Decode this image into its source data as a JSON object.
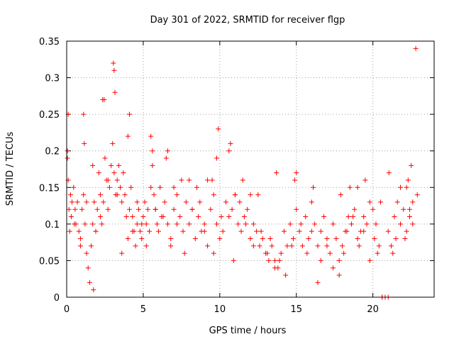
{
  "chart_data": {
    "type": "scatter",
    "title": "Day 301 of 2022, SRMTID for receiver flgp",
    "xlabel": "GPS time / hours",
    "ylabel": "SRMTID / TECUs",
    "xlim": [
      0,
      24
    ],
    "ylim": [
      0,
      0.35
    ],
    "x_ticks": [
      0,
      5,
      10,
      15,
      20
    ],
    "x_tick_labels": [
      "0",
      "5",
      "10",
      "15",
      "20"
    ],
    "y_ticks": [
      0,
      0.05,
      0.1,
      0.15,
      0.2,
      0.25,
      0.3,
      0.35
    ],
    "y_tick_labels": [
      "0",
      "0.05",
      "0.1",
      "0.15",
      "0.2",
      "0.25",
      "0.3",
      "0.35"
    ],
    "grid": true,
    "marker": "plus",
    "marker_color": "#ff0000",
    "series": [
      {
        "name": "SRMTID",
        "x": [
          0.05,
          0.1,
          0.15,
          0.2,
          0.25,
          0.3,
          0.35,
          0.45,
          0.55,
          0.6,
          0.7,
          0.8,
          0.9,
          1.0,
          1.1,
          1.2,
          1.3,
          1.4,
          1.5,
          1.6,
          1.7,
          1.8,
          1.9,
          2.0,
          2.1,
          2.2,
          2.3,
          2.4,
          2.5,
          2.6,
          2.7,
          2.8,
          2.9,
          3.0,
          3.1,
          3.2,
          3.3,
          3.4,
          3.5,
          3.6,
          3.7,
          3.8,
          3.9,
          4.0,
          4.1,
          4.2,
          4.3,
          4.4,
          4.5,
          4.6,
          4.7,
          4.8,
          4.9,
          5.0,
          5.1,
          5.2,
          5.3,
          5.4,
          5.5,
          5.6,
          5.7,
          5.8,
          5.9,
          6.0,
          6.2,
          6.4,
          6.6,
          6.8,
          7.0,
          7.2,
          7.4,
          7.6,
          7.8,
          8.0,
          8.2,
          8.4,
          8.6,
          8.8,
          9.0,
          9.2,
          9.4,
          9.6,
          9.8,
          10.0,
          10.2,
          10.4,
          10.6,
          10.8,
          11.0,
          11.2,
          11.4,
          11.6,
          11.8,
          12.0,
          12.2,
          12.4,
          12.6,
          12.8,
          13.0,
          13.2,
          13.4,
          13.6,
          13.8,
          14.0,
          14.2,
          14.4,
          14.6,
          14.8,
          15.0,
          15.2,
          15.4,
          15.6,
          15.8,
          16.0,
          16.2,
          16.4,
          16.6,
          16.8,
          17.0,
          17.2,
          17.4,
          17.6,
          17.8,
          18.0,
          18.2,
          18.4,
          18.6,
          18.8,
          19.0,
          19.2,
          19.4,
          19.6,
          19.8,
          20.0,
          20.2,
          20.4,
          20.6,
          20.8,
          21.0,
          21.2,
          21.4,
          21.6,
          21.8,
          22.0,
          22.2,
          22.4,
          22.6,
          22.8,
          3.05,
          3.1,
          3.15,
          2.35,
          2.45,
          1.1,
          1.15,
          0.05,
          0.1,
          10.6,
          10.7,
          9.8,
          9.9,
          4.0,
          4.1,
          5.5,
          5.6,
          6.5,
          6.6,
          1.7,
          1.75,
          17.8,
          17.9,
          20.5,
          20.6,
          21.0,
          21.05,
          22.3,
          22.5,
          14.9,
          15.0,
          16.1,
          16.4,
          13.6,
          13.7,
          12.0,
          12.5,
          8.0,
          8.5,
          9.2,
          9.5,
          7.0,
          7.5,
          11.0,
          11.5,
          18.5,
          19.0,
          19.5,
          21.8,
          22.1,
          0.3,
          0.5,
          0.9,
          1.3,
          1.9,
          2.2,
          2.7,
          3.3,
          3.6,
          4.3,
          4.6,
          4.9,
          5.2,
          5.8,
          6.1,
          6.3,
          6.8,
          7.2,
          7.7,
          8.2,
          8.7,
          9.0,
          9.6,
          10.1,
          10.9,
          11.3,
          11.7,
          12.2,
          12.7,
          13.1,
          13.3,
          13.9,
          14.3,
          14.7,
          15.3,
          15.7,
          16.0,
          16.6,
          17.0,
          17.4,
          18.1,
          18.3,
          18.7,
          19.1,
          19.4,
          19.8,
          20.1,
          20.3,
          21.3,
          21.5,
          22.2,
          22.4,
          22.6,
          22.9
        ],
        "y": [
          0.2,
          0.16,
          0.12,
          0.09,
          0.14,
          0.11,
          0.13,
          0.15,
          0.12,
          0.1,
          0.13,
          0.09,
          0.08,
          0.12,
          0.14,
          0.1,
          0.06,
          0.04,
          0.02,
          0.07,
          0.1,
          0.13,
          0.09,
          0.12,
          0.17,
          0.14,
          0.1,
          0.13,
          0.19,
          0.16,
          0.12,
          0.15,
          0.18,
          0.21,
          0.17,
          0.14,
          0.16,
          0.18,
          0.15,
          0.13,
          0.17,
          0.14,
          0.11,
          0.08,
          0.12,
          0.15,
          0.11,
          0.09,
          0.07,
          0.1,
          0.12,
          0.09,
          0.08,
          0.11,
          0.13,
          0.1,
          0.12,
          0.09,
          0.15,
          0.18,
          0.14,
          0.12,
          0.1,
          0.09,
          0.11,
          0.13,
          0.1,
          0.08,
          0.12,
          0.14,
          0.11,
          0.09,
          0.13,
          0.1,
          0.12,
          0.08,
          0.11,
          0.09,
          0.1,
          0.07,
          0.12,
          0.14,
          0.1,
          0.08,
          0.09,
          0.13,
          0.11,
          0.12,
          0.14,
          0.1,
          0.09,
          0.11,
          0.12,
          0.08,
          0.1,
          0.09,
          0.07,
          0.08,
          0.06,
          0.05,
          0.07,
          0.05,
          0.04,
          0.06,
          0.09,
          0.07,
          0.1,
          0.08,
          0.12,
          0.09,
          0.07,
          0.11,
          0.08,
          0.13,
          0.1,
          0.07,
          0.09,
          0.11,
          0.08,
          0.06,
          0.1,
          0.08,
          0.05,
          0.07,
          0.09,
          0.11,
          0.1,
          0.12,
          0.08,
          0.09,
          0.11,
          0.1,
          0.13,
          0.12,
          0.1,
          0.07,
          0.0,
          0.0,
          0.09,
          0.07,
          0.11,
          0.13,
          0.1,
          0.12,
          0.15,
          0.12,
          0.1,
          0.34,
          0.32,
          0.31,
          0.28,
          0.27,
          0.27,
          0.25,
          0.21,
          0.19,
          0.25,
          0.2,
          0.21,
          0.19,
          0.23,
          0.22,
          0.25,
          0.22,
          0.2,
          0.19,
          0.2,
          0.18,
          0.01,
          0.03,
          0.14,
          0.13,
          0.0,
          0.0,
          0.17,
          0.16,
          0.18,
          0.16,
          0.17,
          0.15,
          0.02,
          0.04,
          0.17,
          0.14,
          0.14,
          0.16,
          0.15,
          0.16,
          0.16,
          0.15,
          0.16,
          0.14,
          0.16,
          0.15,
          0.15,
          0.16,
          0.15,
          0.08,
          0.11,
          0.1,
          0.07,
          0.13,
          0.09,
          0.11,
          0.16,
          0.14,
          0.06,
          0.09,
          0.13,
          0.1,
          0.07,
          0.12,
          0.15,
          0.11,
          0.07,
          0.1,
          0.06,
          0.12,
          0.13,
          0.09,
          0.06,
          0.11,
          0.05,
          0.13,
          0.1,
          0.07,
          0.09,
          0.06,
          0.08,
          0.05,
          0.03,
          0.07,
          0.1,
          0.06,
          0.09,
          0.05,
          0.07,
          0.04,
          0.06,
          0.09,
          0.11,
          0.07,
          0.09,
          0.05,
          0.08,
          0.06,
          0.06,
          0.08,
          0.09,
          0.11,
          0.13,
          0.14
        ]
      }
    ]
  }
}
